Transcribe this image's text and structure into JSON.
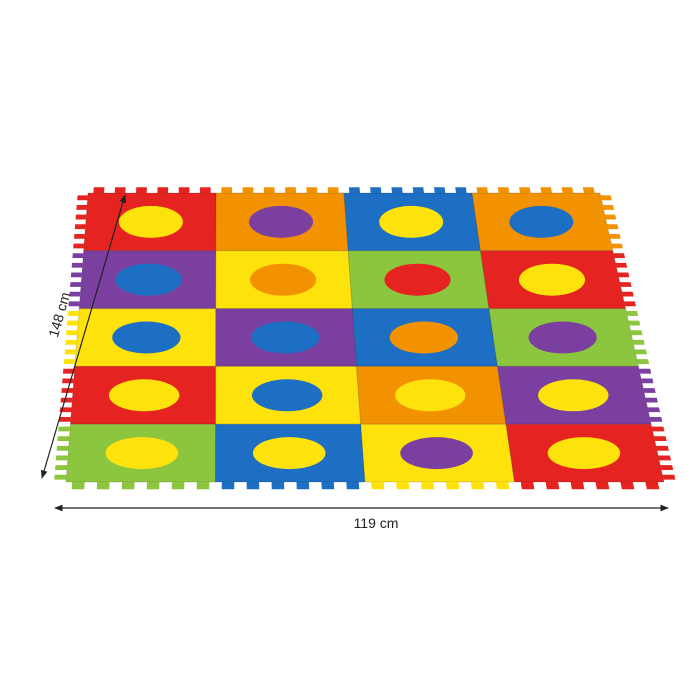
{
  "dimensions": {
    "height": "148 cm",
    "width": "119 cm"
  }
}
